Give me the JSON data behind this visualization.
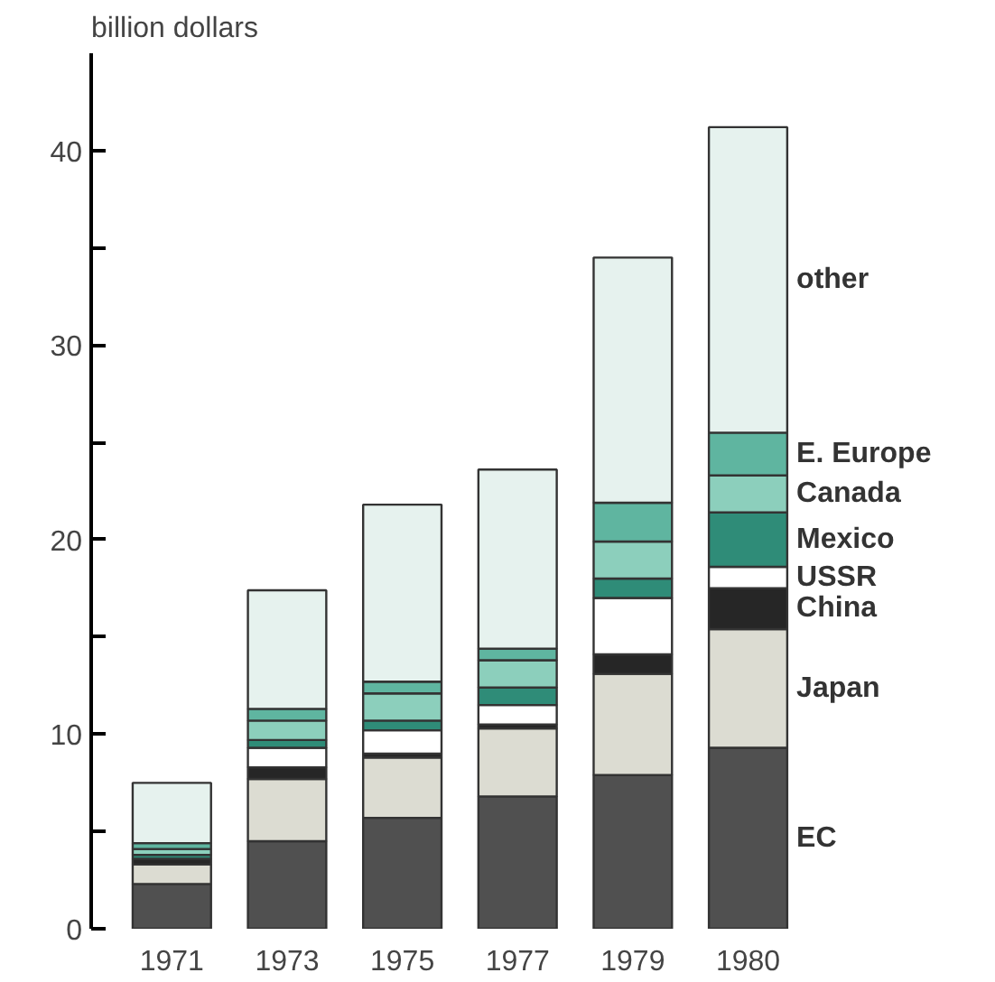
{
  "chart_data": {
    "type": "bar",
    "stacked": true,
    "ylabel": "billion dollars",
    "categories": [
      "1971",
      "1973",
      "1975",
      "1977",
      "1979",
      "1980"
    ],
    "series": [
      {
        "name": "EC",
        "color": "#505050",
        "values": [
          2.3,
          4.5,
          5.7,
          6.8,
          7.9,
          9.3
        ]
      },
      {
        "name": "Japan",
        "color": "#dcdcd2",
        "values": [
          1.0,
          3.2,
          3.1,
          3.5,
          5.2,
          6.1
        ]
      },
      {
        "name": "China",
        "color": "#262626",
        "values": [
          0.3,
          0.6,
          0.2,
          0.2,
          1.0,
          2.1
        ]
      },
      {
        "name": "USSR",
        "color": "#ffffff",
        "values": [
          0,
          1.0,
          1.2,
          1.0,
          2.9,
          1.1
        ]
      },
      {
        "name": "Mexico",
        "color": "#2f8c78",
        "values": [
          0.2,
          0.4,
          0.5,
          0.9,
          1.0,
          2.8
        ]
      },
      {
        "name": "Canada",
        "color": "#8ccfbc",
        "values": [
          0.3,
          1.0,
          1.4,
          1.4,
          1.9,
          1.9
        ]
      },
      {
        "name": "E. Europe",
        "color": "#5fb5a0",
        "values": [
          0.3,
          0.6,
          0.6,
          0.6,
          2.0,
          2.2
        ]
      },
      {
        "name": "other",
        "color": "#e6f2ee",
        "values": [
          3.1,
          6.1,
          9.1,
          9.2,
          12.6,
          15.7
        ]
      }
    ],
    "ylim": [
      0,
      45
    ],
    "yticks": [
      0,
      {
        "value": 5,
        "label": null
      },
      10,
      {
        "value": 15,
        "label": null
      },
      20,
      {
        "value": 25,
        "label": null
      },
      30,
      {
        "value": 35,
        "label": null
      },
      40
    ],
    "grid": false,
    "legend": false
  }
}
